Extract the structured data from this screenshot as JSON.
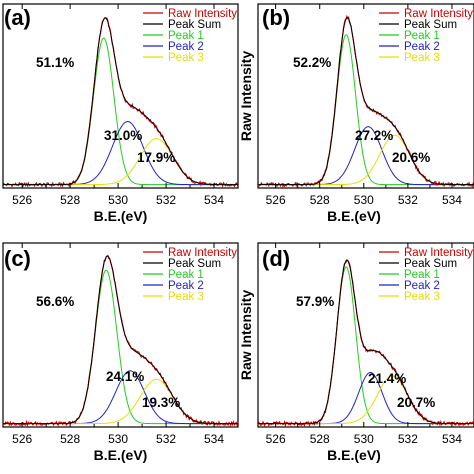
{
  "colors": {
    "raw": "#cc0000",
    "sum": "#000000",
    "peak1": "#22cc22",
    "peak2": "#2222cc",
    "peak3": "#e6e000"
  },
  "chart_data": [
    {
      "type": "line",
      "panel_label": "(a)",
      "xlabel": "B.E.(eV)",
      "ylabel": "",
      "xlim": [
        525.2,
        535.0
      ],
      "xticks": [
        526,
        528,
        530,
        532,
        534
      ],
      "xtick_labels": [
        "526",
        "528",
        "530",
        "532",
        "534"
      ],
      "y_ticks_labeled": false,
      "legend": [
        "Raw Intensity",
        "Peak Sum",
        "Peak 1",
        "Peak 2",
        "Peak 3"
      ],
      "legend_position": "top-right",
      "annotations": [
        "51.1%",
        "31.0%",
        "17.9%"
      ],
      "peaks": [
        {
          "name": "Peak 1",
          "center": 529.4,
          "fwhm": 1.0,
          "height": 0.86
        },
        {
          "name": "Peak 2",
          "center": 530.4,
          "fwhm": 1.5,
          "height": 0.37
        },
        {
          "name": "Peak 3",
          "center": 531.6,
          "fwhm": 1.6,
          "height": 0.27
        }
      ],
      "baseline": 0.02
    },
    {
      "type": "line",
      "panel_label": "(b)",
      "xlabel": "B.E.(eV)",
      "ylabel": "Raw Intensity",
      "xlim": [
        525.2,
        535.0
      ],
      "xticks": [
        526,
        528,
        530,
        532,
        534
      ],
      "xtick_labels": [
        "526",
        "528",
        "530",
        "532",
        "534"
      ],
      "y_ticks_labeled": false,
      "legend": [
        "Raw Intensity",
        "Peak Sum",
        "Peak 1",
        "Peak 2",
        "Peak 3"
      ],
      "legend_position": "top-right",
      "annotations": [
        "52.2%",
        "27.2%",
        "20.6%"
      ],
      "peaks": [
        {
          "name": "Peak 1",
          "center": 529.2,
          "fwhm": 1.0,
          "height": 0.88
        },
        {
          "name": "Peak 2",
          "center": 530.2,
          "fwhm": 1.45,
          "height": 0.34
        },
        {
          "name": "Peak 3",
          "center": 531.4,
          "fwhm": 1.6,
          "height": 0.29
        }
      ],
      "baseline": 0.02
    },
    {
      "type": "line",
      "panel_label": "(c)",
      "xlabel": "B.E.(eV)",
      "ylabel": "",
      "xlim": [
        525.2,
        535.0
      ],
      "xticks": [
        526,
        528,
        530,
        532,
        534
      ],
      "xtick_labels": [
        "526",
        "528",
        "530",
        "532",
        "534"
      ],
      "y_ticks_labeled": false,
      "legend": [
        "Raw Intensity",
        "Peak Sum",
        "Peak 1",
        "Peak 2",
        "Peak 3"
      ],
      "legend_position": "top-right",
      "annotations": [
        "56.6%",
        "24.1%",
        "19.3%"
      ],
      "peaks": [
        {
          "name": "Peak 1",
          "center": 529.5,
          "fwhm": 1.05,
          "height": 0.9
        },
        {
          "name": "Peak 2",
          "center": 530.5,
          "fwhm": 1.4,
          "height": 0.31
        },
        {
          "name": "Peak 3",
          "center": 531.6,
          "fwhm": 1.6,
          "height": 0.26
        }
      ],
      "baseline": 0.02
    },
    {
      "type": "line",
      "panel_label": "(d)",
      "xlabel": "B.E.(eV)",
      "ylabel": "Raw Intensity",
      "xlim": [
        525.2,
        535.0
      ],
      "xticks": [
        526,
        528,
        530,
        532,
        534
      ],
      "xtick_labels": [
        "526",
        "528",
        "530",
        "532",
        "534"
      ],
      "y_ticks_labeled": false,
      "legend": [
        "Raw Intensity",
        "Peak Sum",
        "Peak 1",
        "Peak 2",
        "Peak 3"
      ],
      "legend_position": "top-right",
      "annotations": [
        "57.9%",
        "21.4%",
        "20.7%"
      ],
      "peaks": [
        {
          "name": "Peak 1",
          "center": 529.2,
          "fwhm": 1.0,
          "height": 0.92
        },
        {
          "name": "Peak 2",
          "center": 530.3,
          "fwhm": 1.25,
          "height": 0.3
        },
        {
          "name": "Peak 3",
          "center": 531.3,
          "fwhm": 1.6,
          "height": 0.28
        }
      ],
      "baseline": 0.02
    }
  ]
}
